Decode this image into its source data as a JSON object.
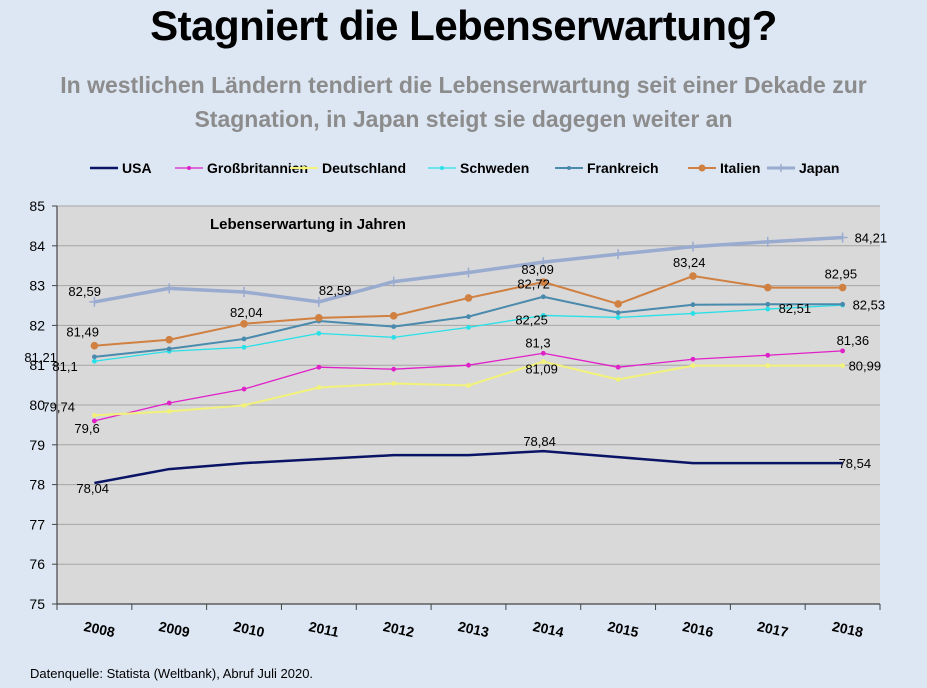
{
  "title": "Stagniert die Lebenserwartung?",
  "subtitle_line1": "In westlichen Ländern tendiert die Lebenserwartung seit einer Dekade zur",
  "subtitle_line2": "Stagnation, in Japan steigt sie dagegen weiter an",
  "source": "Datenquelle: Statista (Weltbank), Abruf Juli 2020.",
  "chart_data": {
    "type": "line",
    "title": "Lebenserwartung in Jahren",
    "xlabel": "",
    "ylabel": "",
    "categories": [
      "2008",
      "2009",
      "2010",
      "2011",
      "2012",
      "2013",
      "2014",
      "2015",
      "2016",
      "2017",
      "2018"
    ],
    "ylim": [
      75,
      85
    ],
    "yticks": [
      "75",
      "76",
      "77",
      "78",
      "79",
      "80",
      "81",
      "82",
      "83",
      "84",
      "85"
    ],
    "grid": true,
    "legend": "top",
    "series": [
      {
        "name": "USA",
        "color": "#0a1466",
        "marker": "none",
        "width": 2.5,
        "values": [
          78.04,
          78.39,
          78.54,
          78.64,
          78.74,
          78.74,
          78.84,
          78.69,
          78.54,
          78.54,
          78.54
        ],
        "labels": [
          {
            "i": 0,
            "text": "78,04"
          },
          {
            "i": 6,
            "text": "78,84"
          },
          {
            "i": 10,
            "text": "78,54"
          }
        ]
      },
      {
        "name": "Großbritannien",
        "color": "#e020c8",
        "marker": "dot",
        "width": 1.3,
        "values": [
          79.6,
          80.05,
          80.4,
          80.95,
          80.9,
          81.0,
          81.3,
          80.95,
          81.15,
          81.25,
          81.36
        ],
        "labels": [
          {
            "i": 0,
            "text": "79,6"
          },
          {
            "i": 6,
            "text": "81,3"
          },
          {
            "i": 10,
            "text": "81,36"
          }
        ]
      },
      {
        "name": "Deutschland",
        "color": "#f2f27a",
        "marker": "dot",
        "width": 2,
        "values": [
          79.74,
          79.84,
          79.99,
          80.44,
          80.54,
          80.49,
          81.09,
          80.64,
          80.99,
          80.99,
          80.99
        ],
        "labels": [
          {
            "i": 0,
            "text": "79,74"
          },
          {
            "i": 6,
            "text": "81,09"
          },
          {
            "i": 10,
            "text": "80,99"
          }
        ]
      },
      {
        "name": "Schweden",
        "color": "#29e0e8",
        "marker": "dot",
        "width": 1.3,
        "values": [
          81.1,
          81.35,
          81.45,
          81.8,
          81.7,
          81.95,
          82.25,
          82.2,
          82.3,
          82.41,
          82.51
        ],
        "labels": [
          {
            "i": 0,
            "text": "81,1"
          },
          {
            "i": 6,
            "text": "82,25"
          },
          {
            "i": 10,
            "text": "82,51"
          }
        ]
      },
      {
        "name": "Frankreich",
        "color": "#4a8aad",
        "marker": "dot",
        "width": 2,
        "values": [
          81.21,
          81.41,
          81.66,
          82.11,
          81.97,
          82.22,
          82.72,
          82.32,
          82.52,
          82.53,
          82.53
        ],
        "labels": [
          {
            "i": 0,
            "text": "81,21"
          },
          {
            "i": 6,
            "text": "82,72"
          },
          {
            "i": 10,
            "text": "82,53"
          }
        ]
      },
      {
        "name": "Italien",
        "color": "#d08040",
        "marker": "bigdot",
        "width": 2,
        "values": [
          81.49,
          81.64,
          82.04,
          82.19,
          82.24,
          82.69,
          83.09,
          82.54,
          83.24,
          82.95,
          82.95
        ],
        "labels": [
          {
            "i": 0,
            "text": "81,49"
          },
          {
            "i": 2,
            "text": "82,04"
          },
          {
            "i": 6,
            "text": "83,09"
          },
          {
            "i": 8,
            "text": "83,24"
          },
          {
            "i": 10,
            "text": "82,95"
          }
        ]
      },
      {
        "name": "Japan",
        "color": "#9aabd0",
        "marker": "plus",
        "width": 3.5,
        "values": [
          82.59,
          82.93,
          82.84,
          82.59,
          83.1,
          83.33,
          83.59,
          83.79,
          83.98,
          84.1,
          84.21
        ],
        "labels": [
          {
            "i": 0,
            "text": "82,59"
          },
          {
            "i": 3,
            "text": "82,59"
          },
          {
            "i": 10,
            "text": "84,21"
          }
        ]
      }
    ]
  }
}
